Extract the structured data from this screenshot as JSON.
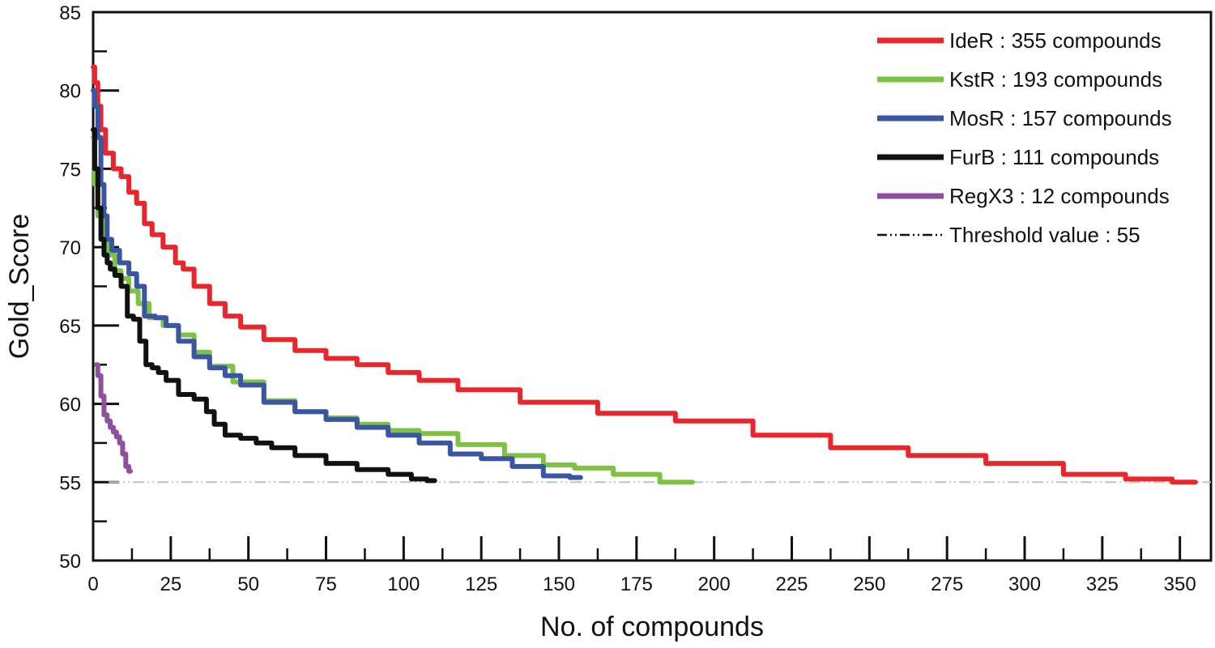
{
  "chart_data": {
    "type": "line",
    "title": "",
    "xlabel": "No. of compounds",
    "ylabel": "Gold_Score",
    "xlim": [
      0,
      360
    ],
    "ylim": [
      50,
      85
    ],
    "x_ticks": [
      0,
      25,
      50,
      75,
      100,
      125,
      150,
      175,
      200,
      225,
      250,
      275,
      300,
      325,
      350
    ],
    "y_ticks": [
      50,
      55,
      60,
      65,
      70,
      75,
      80,
      85
    ],
    "grid": false,
    "legend_position": "top-right",
    "series": [
      {
        "name": "IdeR",
        "legend_label": "IdeR : 355 compounds",
        "color": "#e8262b",
        "x": [
          0,
          1,
          2,
          3,
          5,
          8,
          10,
          13,
          15,
          18,
          20,
          25,
          28,
          30,
          35,
          40,
          45,
          50,
          60,
          70,
          80,
          90,
          100,
          110,
          125,
          150,
          175,
          200,
          225,
          250,
          275,
          300,
          325,
          340,
          355
        ],
        "values": [
          81.5,
          80.5,
          79.0,
          77.5,
          76.0,
          75.0,
          74.5,
          73.5,
          72.8,
          71.5,
          70.8,
          70.0,
          69.0,
          68.6,
          67.5,
          66.4,
          65.6,
          64.9,
          64.1,
          63.4,
          62.9,
          62.5,
          62.0,
          61.5,
          60.9,
          60.1,
          59.4,
          58.9,
          58.0,
          57.2,
          56.7,
          56.2,
          55.5,
          55.2,
          55.0
        ]
      },
      {
        "name": "KstR",
        "legend_label": "KstR : 193 compounds",
        "color": "#7dc242",
        "x": [
          0,
          1,
          2,
          4,
          6,
          8,
          10,
          13,
          16,
          20,
          25,
          30,
          35,
          40,
          50,
          60,
          70,
          80,
          90,
          100,
          110,
          125,
          140,
          150,
          160,
          175,
          190,
          193
        ],
        "values": [
          77.0,
          74.0,
          72.0,
          70.5,
          69.5,
          68.5,
          68.0,
          67.2,
          66.4,
          65.5,
          65.0,
          64.4,
          63.3,
          62.4,
          61.4,
          60.2,
          59.5,
          59.1,
          58.7,
          58.3,
          58.1,
          57.4,
          56.7,
          56.1,
          55.9,
          55.5,
          55.0,
          55.0
        ]
      },
      {
        "name": "MosR",
        "legend_label": "MosR : 157 compounds",
        "color": "#3a55a4",
        "x": [
          0,
          1,
          2,
          3,
          4,
          5,
          7,
          10,
          13,
          15,
          18,
          22,
          25,
          30,
          35,
          40,
          45,
          50,
          60,
          70,
          80,
          90,
          100,
          110,
          120,
          130,
          140,
          150,
          157
        ],
        "values": [
          80.0,
          79.0,
          77.0,
          74.0,
          72.0,
          70.5,
          69.8,
          69.0,
          68.3,
          67.5,
          65.6,
          65.5,
          65.0,
          64.0,
          63.0,
          62.3,
          61.8,
          61.2,
          60.1,
          59.5,
          59.0,
          58.5,
          58.0,
          57.5,
          56.8,
          56.5,
          56.0,
          55.4,
          55.3
        ]
      },
      {
        "name": "FurB",
        "legend_label": "FurB : 111 compounds",
        "color": "#111111",
        "x": [
          0,
          1,
          2,
          3,
          4,
          5,
          6,
          8,
          10,
          12,
          14,
          16,
          18,
          20,
          22,
          25,
          30,
          35,
          38,
          40,
          45,
          50,
          55,
          60,
          70,
          80,
          90,
          100,
          105,
          110
        ],
        "values": [
          77.5,
          75.0,
          72.5,
          70.5,
          69.5,
          69.0,
          68.6,
          68.2,
          67.5,
          65.6,
          65.4,
          64.0,
          62.5,
          62.3,
          62.0,
          61.5,
          60.6,
          60.3,
          59.5,
          58.7,
          58.0,
          57.8,
          57.5,
          57.2,
          56.7,
          56.2,
          55.8,
          55.5,
          55.2,
          55.1
        ]
      },
      {
        "name": "RegX3",
        "legend_label": "RegX3 : 12 compounds",
        "color": "#8e4f9e",
        "x": [
          1,
          2,
          3,
          4,
          5,
          6,
          7,
          8,
          9,
          10,
          11,
          12
        ],
        "values": [
          62.5,
          61.8,
          60.5,
          59.3,
          58.9,
          58.5,
          58.2,
          57.9,
          57.5,
          56.8,
          56.0,
          55.7
        ]
      }
    ],
    "threshold": {
      "legend_label": "Threshold value  : 55",
      "value": 55,
      "x_start": 5,
      "x_end": 360,
      "color": "#b8c7c4"
    }
  }
}
